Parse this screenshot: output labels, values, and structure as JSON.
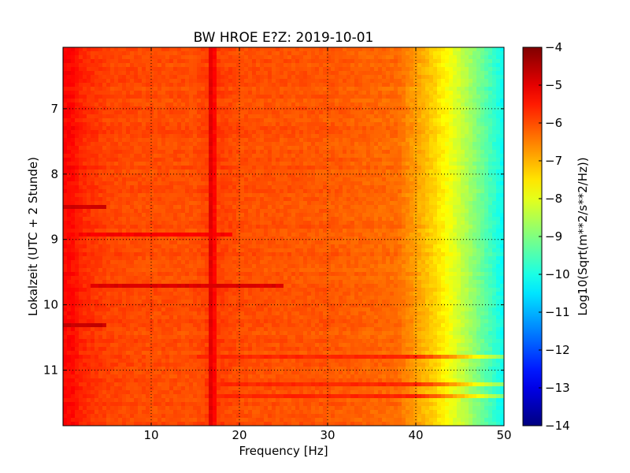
{
  "chart_data": {
    "type": "heatmap",
    "title": "BW HROE E?Z: 2019-10-01",
    "xlabel": "Frequency [Hz]",
    "ylabel": "Lokalzeit (UTC + 2 Stunde)",
    "xlim": [
      0,
      50
    ],
    "ylim": [
      11.85,
      6.06
    ],
    "x_ticks": [
      10,
      20,
      30,
      40,
      50
    ],
    "y_ticks": [
      7,
      8,
      9,
      10,
      11
    ],
    "grid": true,
    "colormap": "jet",
    "colorbar": {
      "label": "Log10(Sqrt(m**2/s**2/Hz))",
      "range": [
        -14,
        -4
      ],
      "ticks": [
        -4,
        -5,
        -6,
        -7,
        -8,
        -9,
        -10,
        -11,
        -12,
        -13,
        -14
      ]
    },
    "level_profile": [
      {
        "freq": 0,
        "level": -5.3
      },
      {
        "freq": 1,
        "level": -5.3
      },
      {
        "freq": 2,
        "level": -5.6
      },
      {
        "freq": 5,
        "level": -5.9
      },
      {
        "freq": 10,
        "level": -6.0
      },
      {
        "freq": 15,
        "level": -6.0
      },
      {
        "freq": 17,
        "level": -5.8
      },
      {
        "freq": 20,
        "level": -6.0
      },
      {
        "freq": 30,
        "level": -6.1
      },
      {
        "freq": 38,
        "level": -6.3
      },
      {
        "freq": 40,
        "level": -6.8
      },
      {
        "freq": 42,
        "level": -7.3
      },
      {
        "freq": 44,
        "level": -7.9
      },
      {
        "freq": 46,
        "level": -8.6
      },
      {
        "freq": 48,
        "level": -9.4
      },
      {
        "freq": 50,
        "level": -10.2
      }
    ],
    "narrowband_lines": [
      {
        "freq": 16.7,
        "level": -5.0
      },
      {
        "freq": 17.1,
        "level": -5.3
      }
    ],
    "bands": [
      {
        "time_start": 8.48,
        "time_end": 8.52,
        "freq_start": 0,
        "freq_end": 5,
        "level": -4.8
      },
      {
        "time_start": 8.91,
        "time_end": 8.95,
        "freq_start": 2,
        "freq_end": 19,
        "level": -5.2
      },
      {
        "time_start": 9.68,
        "time_end": 9.74,
        "freq_start": 3,
        "freq_end": 25,
        "level": -4.9
      },
      {
        "time_start": 10.31,
        "time_end": 10.35,
        "freq_start": 0,
        "freq_end": 5,
        "level": -4.7
      },
      {
        "time_start": 10.78,
        "time_end": 10.84,
        "freq_start": 15,
        "freq_end": 50,
        "level": -5.6
      },
      {
        "time_start": 11.18,
        "time_end": 11.24,
        "freq_start": 16,
        "freq_end": 50,
        "level": -5.6
      },
      {
        "time_start": 11.38,
        "time_end": 11.42,
        "freq_start": 16,
        "freq_end": 50,
        "level": -5.6
      }
    ]
  }
}
